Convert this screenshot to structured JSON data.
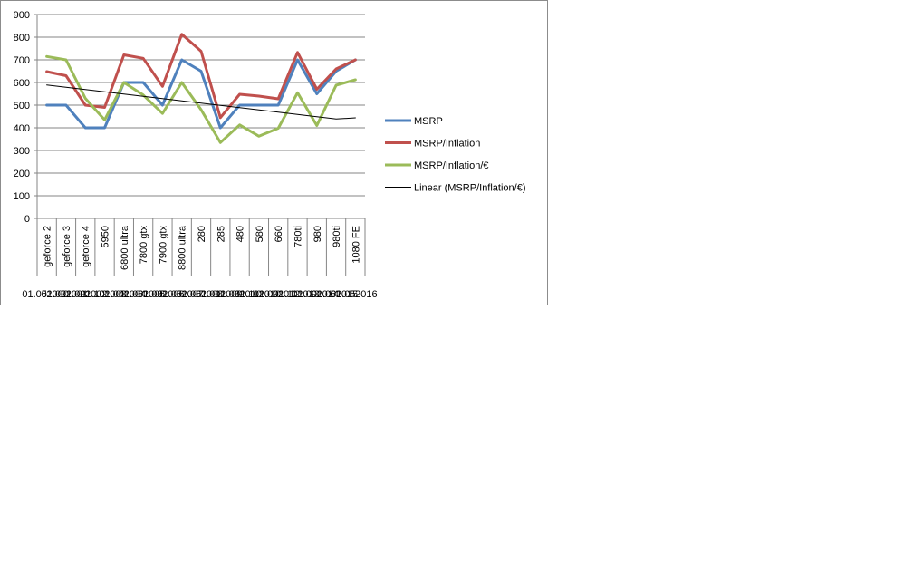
{
  "chart_data": {
    "type": "line",
    "categories": [
      "geforce 2",
      "geforce 3",
      "geforce 4",
      "5950",
      "6800 ultra",
      "7800 gtx",
      "7900 gtx",
      "8800 ultra",
      "280",
      "285",
      "480",
      "580",
      "660",
      "780ti",
      "980",
      "980ti",
      "1080 FE"
    ],
    "dates": [
      "01.05.2000",
      "01.02.2001",
      "01.02.2002",
      "01.10.2003",
      "01.04.2004",
      "01.06.2005",
      "01.03.2006",
      "01.05.2007",
      "01.06.2008",
      "01.01.2009",
      "01.03.2010",
      "01.11.2010",
      "01.09.2012",
      "01.11.2013",
      "01.09.2014",
      "01.06.2015",
      "01.05.2016"
    ],
    "date_labels_printed": [
      "01.05.",
      "2000",
      "01.02.",
      "2001",
      "01.02.",
      "2002",
      "01.10.",
      "2003",
      "01.04.",
      "2004",
      "01.06.",
      "2005",
      "01.03.",
      "2006",
      "01.05.",
      "2007",
      "01.06.",
      "2008",
      "01.01.",
      "2009",
      "01.03.",
      "2010",
      "01.11.",
      "2010",
      "01.09.",
      "2012",
      "01.11.",
      "2013",
      "01.09.",
      "2014",
      "01.06.",
      "2015",
      "01.05.",
      "2016"
    ],
    "series": [
      {
        "name": "MSRP",
        "color": "#4f81bd",
        "values": [
          500,
          500,
          400,
          400,
          600,
          600,
          500,
          700,
          650,
          400,
          500,
          500,
          500,
          700,
          550,
          650,
          700
        ]
      },
      {
        "name": "MSRP/Inflation",
        "color": "#c0504d",
        "values": [
          648,
          630,
          500,
          490,
          722,
          707,
          583,
          813,
          738,
          445,
          548,
          540,
          528,
          733,
          570,
          660,
          700
        ]
      },
      {
        "name": "MSRP/Inflation/€",
        "color": "#9bbb59",
        "values": [
          715,
          700,
          530,
          435,
          600,
          545,
          463,
          600,
          480,
          335,
          413,
          363,
          398,
          555,
          410,
          588,
          612
        ]
      },
      {
        "name": "Linear (MSRP/Inflation/€)",
        "color": "#000000",
        "trendline": true,
        "values": [
          589,
          579,
          569,
          559,
          549,
          539,
          529,
          519,
          509,
          499,
          489,
          479,
          469,
          459,
          449,
          439,
          444
        ]
      }
    ],
    "ylim": [
      0,
      900
    ],
    "yticks": [
      0,
      100,
      200,
      300,
      400,
      500,
      600,
      700,
      800,
      900
    ],
    "grid": true,
    "legend": "right"
  }
}
